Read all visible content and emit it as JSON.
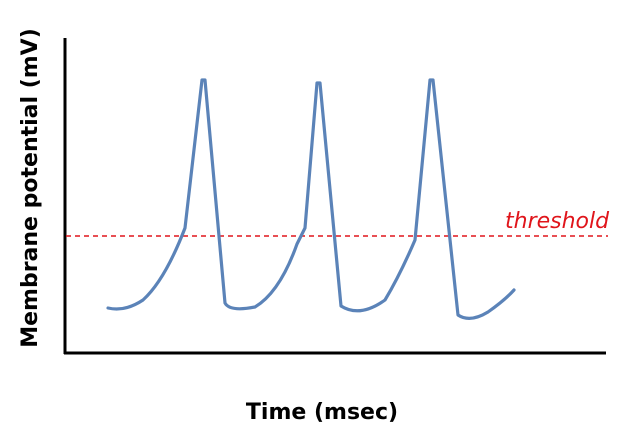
{
  "diagram": {
    "y_axis_label": "Membrane potential (mV)",
    "x_axis_label": "Time (msec)",
    "threshold_label": "threshold",
    "colors": {
      "trace": "#5b83b8",
      "threshold": "#e0151b",
      "axes": "#000000"
    }
  }
}
